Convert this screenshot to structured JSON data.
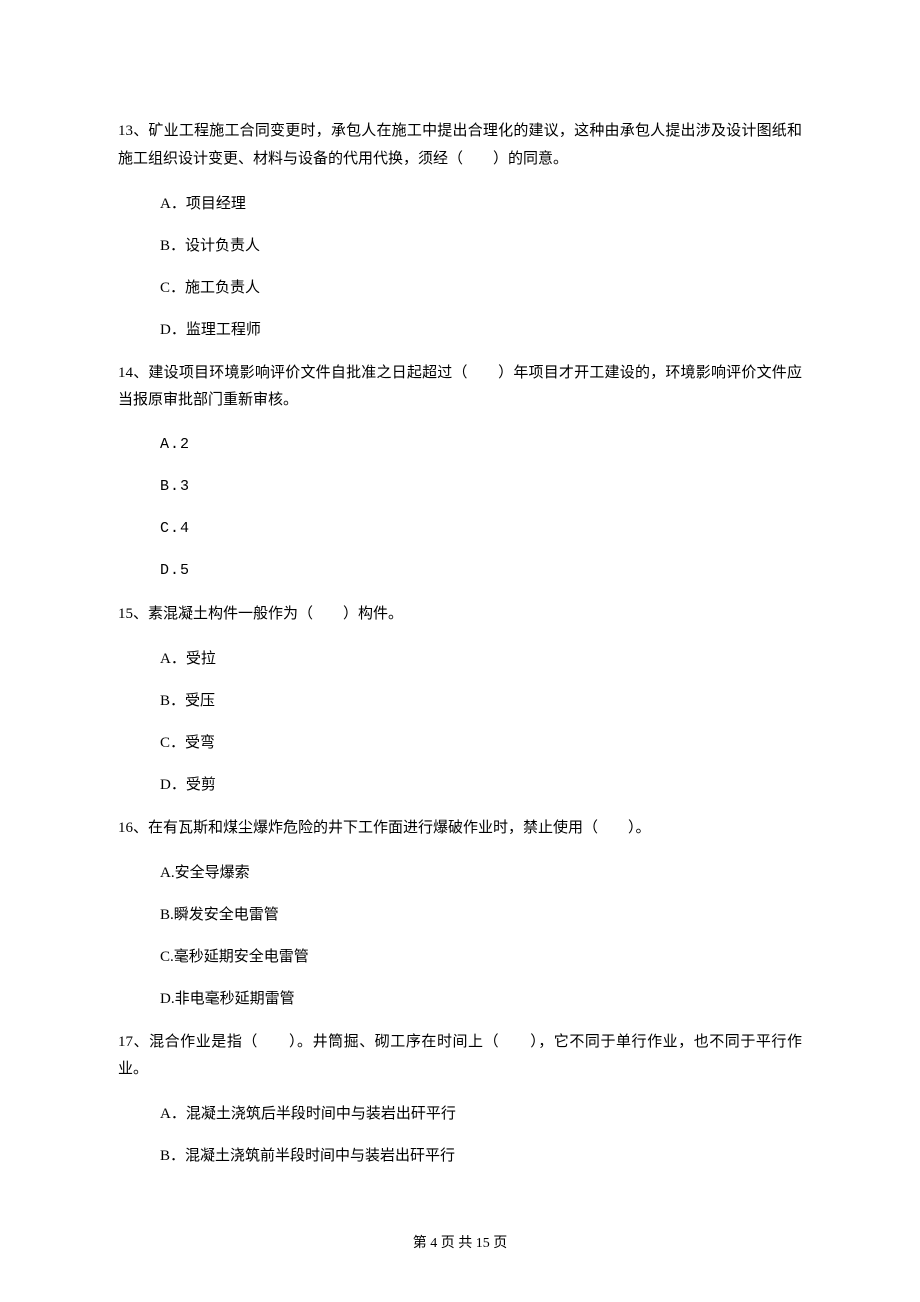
{
  "questions": [
    {
      "number": "13、",
      "text": "矿业工程施工合同变更时，承包人在施工中提出合理化的建议，这种由承包人提出涉及设计图纸和施工组织设计变更、材料与设备的代用代换，须经（　　）的同意。",
      "options": [
        "A．项目经理",
        "B．设计负责人",
        "C．施工负责人",
        "D．监理工程师"
      ]
    },
    {
      "number": "14、",
      "text": "建设项目环境影响评价文件自批准之日起超过（　　）年项目才开工建设的，环境影响评价文件应当报原审批部门重新审核。",
      "options": [
        "A.2",
        "B.3",
        "C.4",
        "D.5"
      ],
      "mono": true
    },
    {
      "number": "15、",
      "text": "素混凝土构件一般作为（　　）构件。",
      "options": [
        "A．受拉",
        "B．受压",
        "C．受弯",
        "D．受剪"
      ]
    },
    {
      "number": "16、",
      "text": "在有瓦斯和煤尘爆炸危险的井下工作面进行爆破作业时，禁止使用（　　）。",
      "options": [
        "A.安全导爆索",
        "B.瞬发安全电雷管",
        "C.毫秒延期安全电雷管",
        "D.非电毫秒延期雷管"
      ]
    },
    {
      "number": "17、",
      "text": "混合作业是指（　　）。井筒掘、砌工序在时间上（　　），它不同于单行作业，也不同于平行作业。",
      "options": [
        "A．混凝土浇筑后半段时间中与装岩出矸平行",
        "B．混凝土浇筑前半段时间中与装岩出矸平行"
      ]
    }
  ],
  "footer": "第 4 页 共 15 页"
}
